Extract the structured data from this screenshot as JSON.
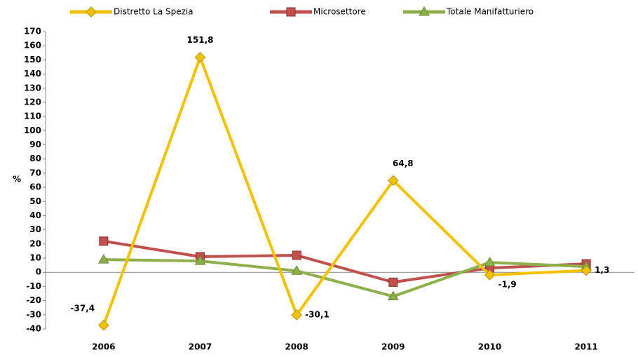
{
  "chart_data": {
    "type": "line",
    "y_label": "%",
    "categories": [
      "2006",
      "2007",
      "2008",
      "2009",
      "2010",
      "2011"
    ],
    "series": [
      {
        "name": "Distretto La Spezia",
        "color": "#f2c200",
        "marker": "diamond",
        "values": [
          -37.4,
          151.8,
          -30.1,
          64.8,
          -1.9,
          1.3
        ],
        "value_labels": [
          "-37,4",
          "151,8",
          "-30,1",
          "64,8",
          "-1,9",
          "1,3"
        ]
      },
      {
        "name": "Microsettore",
        "color": "#c0504d",
        "marker": "square",
        "values": [
          22,
          11,
          12,
          -7,
          3,
          6
        ]
      },
      {
        "name": "Totale Manifatturiero",
        "color": "#8db04a",
        "marker": "triangle",
        "values": [
          9,
          8,
          1,
          -17,
          7,
          4
        ]
      }
    ],
    "ylim": [
      -40,
      170
    ],
    "yticks": [
      -40,
      -30,
      -20,
      -10,
      0,
      10,
      20,
      30,
      40,
      50,
      60,
      70,
      80,
      90,
      100,
      110,
      120,
      130,
      140,
      150,
      160,
      170
    ]
  }
}
